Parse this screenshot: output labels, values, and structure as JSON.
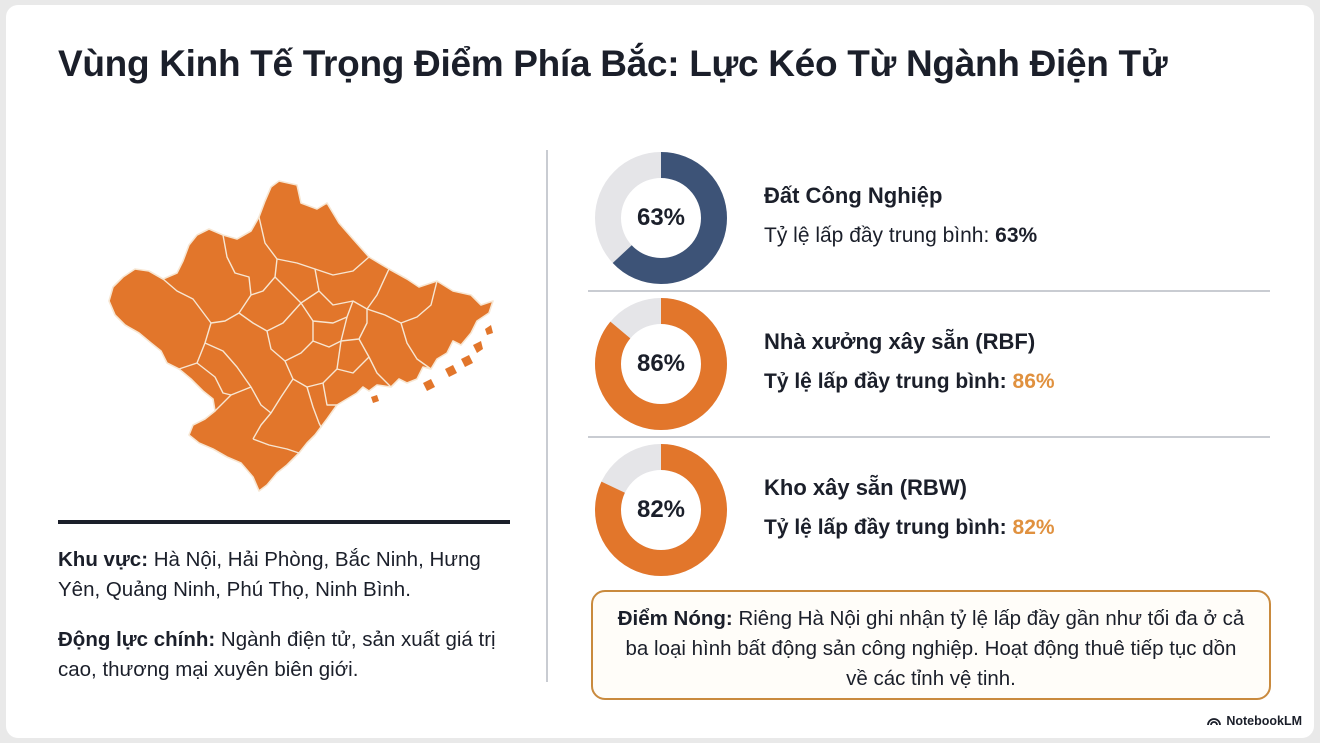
{
  "title": "Vùng Kinh Tế Trọng Điểm Phía Bắc: Lực Kéo Từ Ngành Điện Tử",
  "region": {
    "label": "Khu vực:",
    "text": " Hà Nội, Hải Phòng, Bắc Ninh, Hưng Yên, Quảng Ninh, Phú Thọ, Ninh Bình."
  },
  "driver": {
    "label": "Động lực chính:",
    "text": " Ngành điện tử, sản xuất giá trị cao, thương mại xuyên biên giới."
  },
  "metrics": [
    {
      "name": "Đất Công Nghiệp",
      "rate_label": "Tỷ lệ lấp đầy trung bình: ",
      "value_label": "63%",
      "value": 0.63,
      "color": "#3d5377",
      "value_color": "#1b1f2a"
    },
    {
      "name": "Nhà xưởng xây sẵn (RBF)",
      "rate_label": "Tỷ lệ lấp đầy trung bình: ",
      "value_label": "86%",
      "value": 0.86,
      "color": "#e2762b",
      "value_color": "#e0913f"
    },
    {
      "name": "Kho xây sẵn (RBW)",
      "rate_label": "Tỷ lệ lấp đầy trung bình: ",
      "value_label": "82%",
      "value": 0.82,
      "color": "#e2762b",
      "value_color": "#e0913f"
    }
  ],
  "donut_track_color": "#e5e5e8",
  "map_color": "#e2762b",
  "hotspot": {
    "label": "Điểm Nóng:",
    "text": " Riêng Hà Nội ghi nhận tỷ lệ lấp đầy gần như tối đa ở cả ba loại hình bất động sản công nghiệp. Hoạt động thuê tiếp tục dồn về các tỉnh vệ tinh."
  },
  "brand": "NotebookLM"
}
